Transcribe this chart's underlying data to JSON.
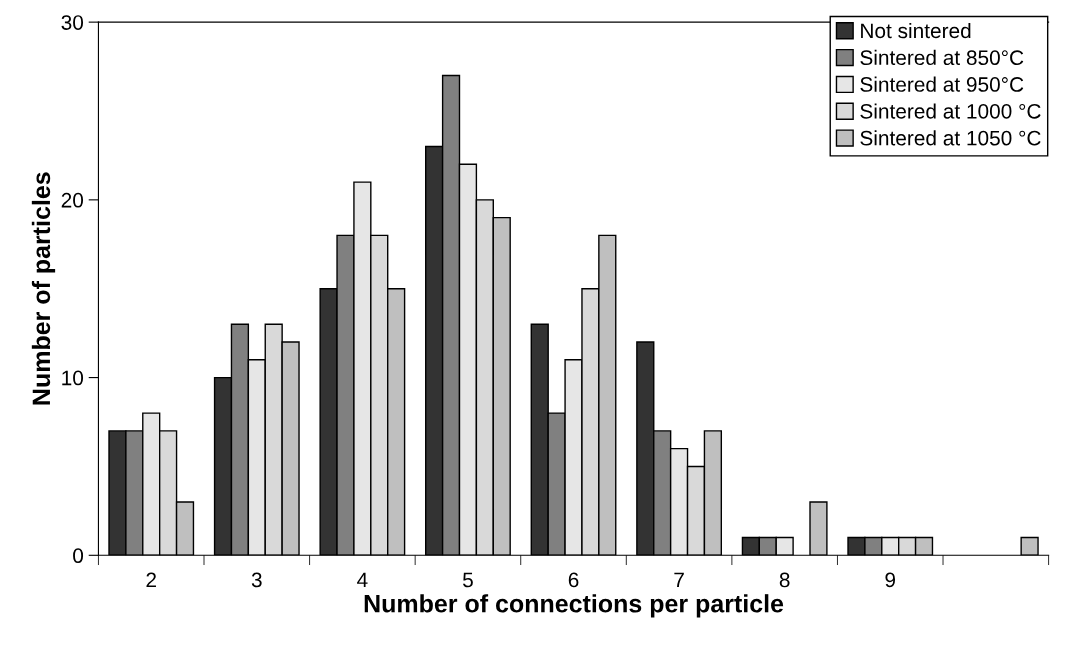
{
  "chart_data": {
    "type": "bar",
    "xlabel": "Number of connections per particle",
    "ylabel": "Number of particles",
    "categories": [
      "2",
      "3",
      "4",
      "5",
      "6",
      "7",
      "8",
      "9",
      null
    ],
    "series": [
      {
        "name": "Not sintered",
        "color": "#333333",
        "values": [
          7,
          10,
          15,
          23,
          13,
          12,
          1,
          1,
          0
        ]
      },
      {
        "name": "Sintered at 850°C",
        "color": "#808080",
        "values": [
          7,
          13,
          18,
          27,
          8,
          7,
          1,
          1,
          0
        ]
      },
      {
        "name": "Sintered at 950°C",
        "color": "#e6e6e6",
        "values": [
          8,
          11,
          21,
          22,
          11,
          6,
          1,
          1,
          0
        ]
      },
      {
        "name": "Sintered at 1000 °C",
        "color": "#d9d9d9",
        "values": [
          7,
          13,
          18,
          20,
          15,
          5,
          0,
          1,
          0
        ]
      },
      {
        "name": "Sintered at 1050 °C",
        "color": "#bfbfbf",
        "values": [
          3,
          12,
          15,
          19,
          18,
          7,
          3,
          1,
          1
        ]
      }
    ],
    "ylim": [
      0,
      30
    ],
    "yticks": [
      0,
      10,
      20,
      30
    ],
    "grid": false,
    "legend": "top right"
  }
}
